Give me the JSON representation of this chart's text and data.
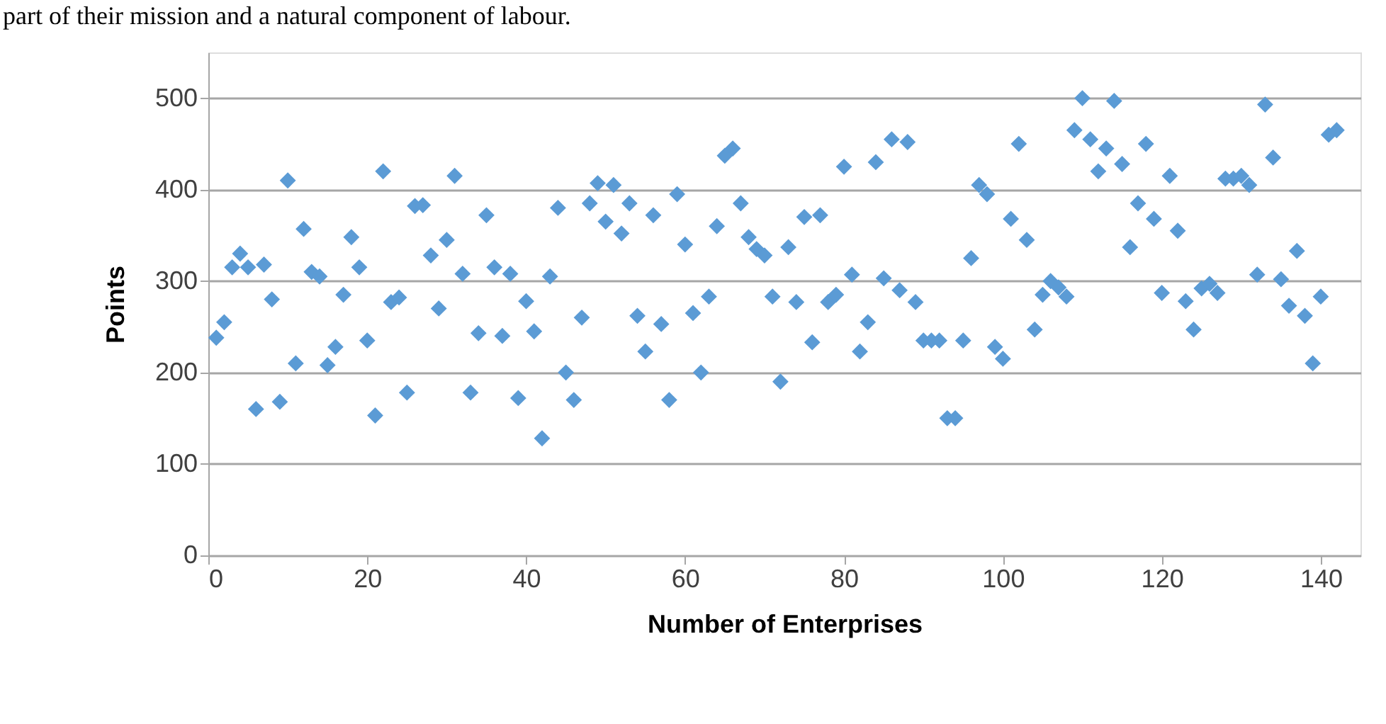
{
  "chart_data": {
    "type": "scatter",
    "xlabel": "Number of Enterprises",
    "ylabel": "Points",
    "annotations": [
      "part of their mission and a natural component of labour."
    ],
    "x": [
      1,
      2,
      3,
      4,
      5,
      6,
      7,
      8,
      9,
      10,
      11,
      12,
      13,
      14,
      15,
      16,
      17,
      18,
      19,
      20,
      21,
      22,
      23,
      24,
      25,
      26,
      27,
      28,
      29,
      30,
      31,
      32,
      33,
      34,
      35,
      36,
      37,
      38,
      39,
      40,
      41,
      42,
      43,
      44,
      45,
      46,
      47,
      48,
      49,
      50,
      51,
      52,
      53,
      54,
      55,
      56,
      57,
      58,
      59,
      60,
      61,
      62,
      63,
      64,
      65,
      66,
      67,
      68,
      69,
      70,
      71,
      72,
      73,
      74,
      75,
      76,
      77,
      78,
      79,
      80,
      81,
      82,
      83,
      84,
      85,
      86,
      87,
      88,
      89,
      90,
      91,
      92,
      93,
      94,
      95,
      96,
      97,
      98,
      99,
      100,
      101,
      102,
      103,
      104,
      105,
      106,
      107,
      108,
      109,
      110,
      111,
      112,
      113,
      114,
      115,
      116,
      117,
      118,
      119,
      120,
      121,
      122,
      123,
      124,
      125,
      126,
      127,
      128,
      129,
      130,
      131,
      132,
      133,
      134,
      135,
      136,
      137,
      138,
      139,
      140,
      141,
      142
    ],
    "series": [
      {
        "color": "#5b9bd5",
        "values": [
          238,
          255,
          315,
          330,
          315,
          160,
          318,
          280,
          168,
          410,
          210,
          357,
          310,
          305,
          208,
          228,
          285,
          348,
          315,
          235,
          153,
          420,
          277,
          282,
          178,
          382,
          383,
          328,
          270,
          345,
          415,
          308,
          178,
          243,
          372,
          315,
          240,
          308,
          172,
          278,
          245,
          128,
          305,
          380,
          200,
          170,
          260,
          385,
          407,
          365,
          405,
          352,
          385,
          262,
          223,
          372,
          253,
          170,
          395,
          340,
          265,
          200,
          283,
          360,
          437,
          445,
          385,
          348,
          335,
          328,
          283,
          190,
          337,
          277,
          370,
          233,
          372,
          277,
          285,
          425,
          307,
          223,
          255,
          430,
          303,
          455,
          290,
          452,
          277,
          235,
          235,
          235,
          150,
          150,
          235,
          325,
          405,
          395,
          228,
          215,
          368,
          450,
          345,
          247,
          285,
          300,
          293,
          283,
          465,
          500,
          455,
          420,
          445,
          497,
          428,
          337,
          385,
          450,
          368,
          287,
          415,
          355,
          278,
          247,
          292,
          297,
          287,
          412,
          412,
          415,
          405,
          307,
          493,
          435,
          302,
          273,
          333,
          262,
          210,
          283,
          460,
          465
        ]
      }
    ],
    "xlim": [
      0,
      145
    ],
    "xticks": [
      0,
      20,
      40,
      60,
      80,
      100,
      120,
      140
    ],
    "ylim": [
      0,
      550
    ],
    "yticks": [
      0,
      100,
      200,
      300,
      400,
      500
    ],
    "grid": "y",
    "marker": "diamond"
  }
}
